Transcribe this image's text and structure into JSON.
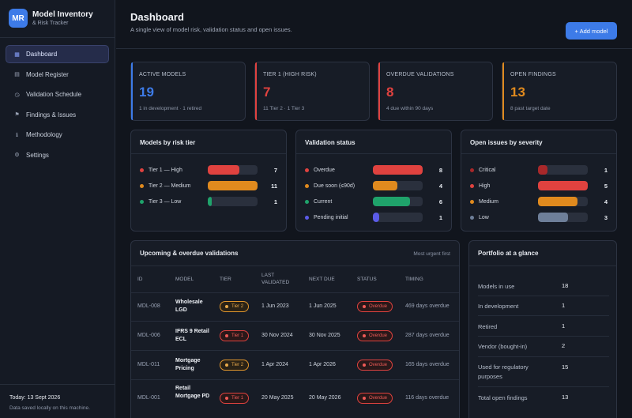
{
  "app": {
    "logo": "MR",
    "title": "Model Inventory",
    "subtitle": "& Risk Tracker"
  },
  "nav": [
    {
      "label": "Dashboard",
      "icon": "grid-icon",
      "glyph": "▦"
    },
    {
      "label": "Model Register",
      "icon": "list-icon",
      "glyph": "▤"
    },
    {
      "label": "Validation Schedule",
      "icon": "clock-icon",
      "glyph": "◷"
    },
    {
      "label": "Findings & Issues",
      "icon": "flag-icon",
      "glyph": "⚑"
    },
    {
      "label": "Methodology",
      "icon": "info-icon",
      "glyph": "ℹ"
    },
    {
      "label": "Settings",
      "icon": "gear-icon",
      "glyph": "⚙"
    }
  ],
  "footer": {
    "today": "Today: 13 Sept 2026",
    "saved": "Data saved locally on this machine."
  },
  "header": {
    "title": "Dashboard",
    "subtitle": "A single view of model risk, validation status and open issues.",
    "add_button": "+ Add model"
  },
  "stats": [
    {
      "label": "ACTIVE MODELS",
      "value": "19",
      "note": "1 in development · 1 retired",
      "color": "#3d7be8"
    },
    {
      "label": "TIER 1 (HIGH RISK)",
      "value": "7",
      "note": "11 Tier 2 · 1 Tier 3",
      "color": "#e0423f"
    },
    {
      "label": "OVERDUE VALIDATIONS",
      "value": "8",
      "note": "4 due within 90 days",
      "color": "#e0423f"
    },
    {
      "label": "OPEN FINDINGS",
      "value": "13",
      "note": "8 past target date",
      "color": "#e08a1e"
    }
  ],
  "risk_tier": {
    "title": "Models by risk tier",
    "rows": [
      {
        "label": "Tier 1 — High",
        "value": 7,
        "fraction": 0.64,
        "color": "#e0423f"
      },
      {
        "label": "Tier 2 — Medium",
        "value": 11,
        "fraction": 1.0,
        "color": "#e08a1e"
      },
      {
        "label": "Tier 3 — Low",
        "value": 1,
        "fraction": 0.09,
        "color": "#1fa36b"
      }
    ]
  },
  "validation": {
    "title": "Validation status",
    "rows": [
      {
        "label": "Overdue",
        "value": 8,
        "fraction": 1.0,
        "color": "#e0423f"
      },
      {
        "label": "Due soon (≤90d)",
        "value": 4,
        "fraction": 0.5,
        "color": "#e08a1e"
      },
      {
        "label": "Current",
        "value": 6,
        "fraction": 0.75,
        "color": "#1fa36b"
      },
      {
        "label": "Pending initial",
        "value": 1,
        "fraction": 0.125,
        "color": "#5b5be8"
      }
    ]
  },
  "issues": {
    "title": "Open issues by severity",
    "rows": [
      {
        "label": "Critical",
        "value": 1,
        "fraction": 0.2,
        "color": "#a8282a"
      },
      {
        "label": "High",
        "value": 5,
        "fraction": 1.0,
        "color": "#e0423f"
      },
      {
        "label": "Medium",
        "value": 4,
        "fraction": 0.8,
        "color": "#e08a1e"
      },
      {
        "label": "Low",
        "value": 3,
        "fraction": 0.6,
        "color": "#6e7f99"
      }
    ]
  },
  "upcoming": {
    "title": "Upcoming & overdue validations",
    "note": "Most urgent first",
    "columns": [
      "ID",
      "MODEL",
      "TIER",
      "LAST VALIDATED",
      "NEXT DUE",
      "STATUS",
      "TIMING"
    ],
    "rows": [
      {
        "id": "MDL-008",
        "model": "Wholesale LGD",
        "tier": "Tier 2",
        "tier_class": "t2",
        "last": "1 Jun 2023",
        "next": "1 Jun 2025",
        "status": "Overdue",
        "timing": "469 days overdue"
      },
      {
        "id": "MDL-006",
        "model": "IFRS 9 Retail ECL",
        "tier": "Tier 1",
        "tier_class": "t1",
        "last": "30 Nov 2024",
        "next": "30 Nov 2025",
        "status": "Overdue",
        "timing": "287 days overdue"
      },
      {
        "id": "MDL-011",
        "model": "Mortgage Pricing",
        "tier": "Tier 2",
        "tier_class": "t2",
        "last": "1 Apr 2024",
        "next": "1 Apr 2026",
        "status": "Overdue",
        "timing": "165 days overdue"
      },
      {
        "id": "MDL-001",
        "model": "Retail Mortgage PD",
        "tier": "Tier 1",
        "tier_class": "t1",
        "last": "20 May 2025",
        "next": "20 May 2026",
        "status": "Overdue",
        "timing": "116 days overdue"
      }
    ]
  },
  "portfolio": {
    "title": "Portfolio at a glance",
    "rows": [
      {
        "label": "Models in use",
        "value": "18"
      },
      {
        "label": "In development",
        "value": "1"
      },
      {
        "label": "Retired",
        "value": "1"
      },
      {
        "label": "Vendor (bought-in)",
        "value": "2"
      },
      {
        "label": "Used for regulatory purposes",
        "value": "15"
      },
      {
        "label": "Total open findings",
        "value": "13"
      }
    ]
  }
}
